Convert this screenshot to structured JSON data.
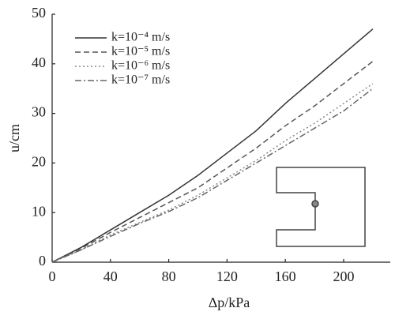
{
  "chart_data": {
    "type": "line",
    "xlabel": "Δp/kPa",
    "ylabel": "u/cm",
    "x": [
      0,
      20,
      40,
      60,
      80,
      100,
      120,
      140,
      160,
      180,
      200,
      220
    ],
    "series": [
      {
        "name": "k=10⁻⁴ m/s",
        "color": "#333333",
        "dash": "solid",
        "values": [
          0,
          3,
          6.5,
          10,
          13.5,
          17.5,
          22,
          26.5,
          32,
          37,
          42,
          47
        ]
      },
      {
        "name": "k=10⁻⁵ m/s",
        "color": "#555555",
        "dash": "dashed",
        "values": [
          0,
          2.8,
          6,
          9,
          12,
          15,
          19,
          23,
          27.5,
          31.5,
          36,
          40.5
        ]
      },
      {
        "name": "k=10⁻⁶ m/s",
        "color": "#888888",
        "dash": "dotted",
        "values": [
          0,
          2.5,
          5.5,
          8,
          10.5,
          13.5,
          17,
          20.5,
          24.5,
          28,
          32,
          36
        ]
      },
      {
        "name": "k=10⁻⁷ m/s",
        "color": "#666666",
        "dash": "dashdot",
        "values": [
          0,
          2.5,
          5.2,
          7.8,
          10.2,
          13,
          16.5,
          20,
          23.5,
          27,
          30.5,
          35
        ]
      }
    ],
    "xlim": [
      0,
      232
    ],
    "ylim": [
      0,
      50
    ],
    "xticks": [
      0,
      40,
      80,
      120,
      160,
      200
    ],
    "yticks": [
      0,
      10,
      20,
      30,
      40,
      50
    ],
    "grid": false,
    "legend": "upper left"
  }
}
